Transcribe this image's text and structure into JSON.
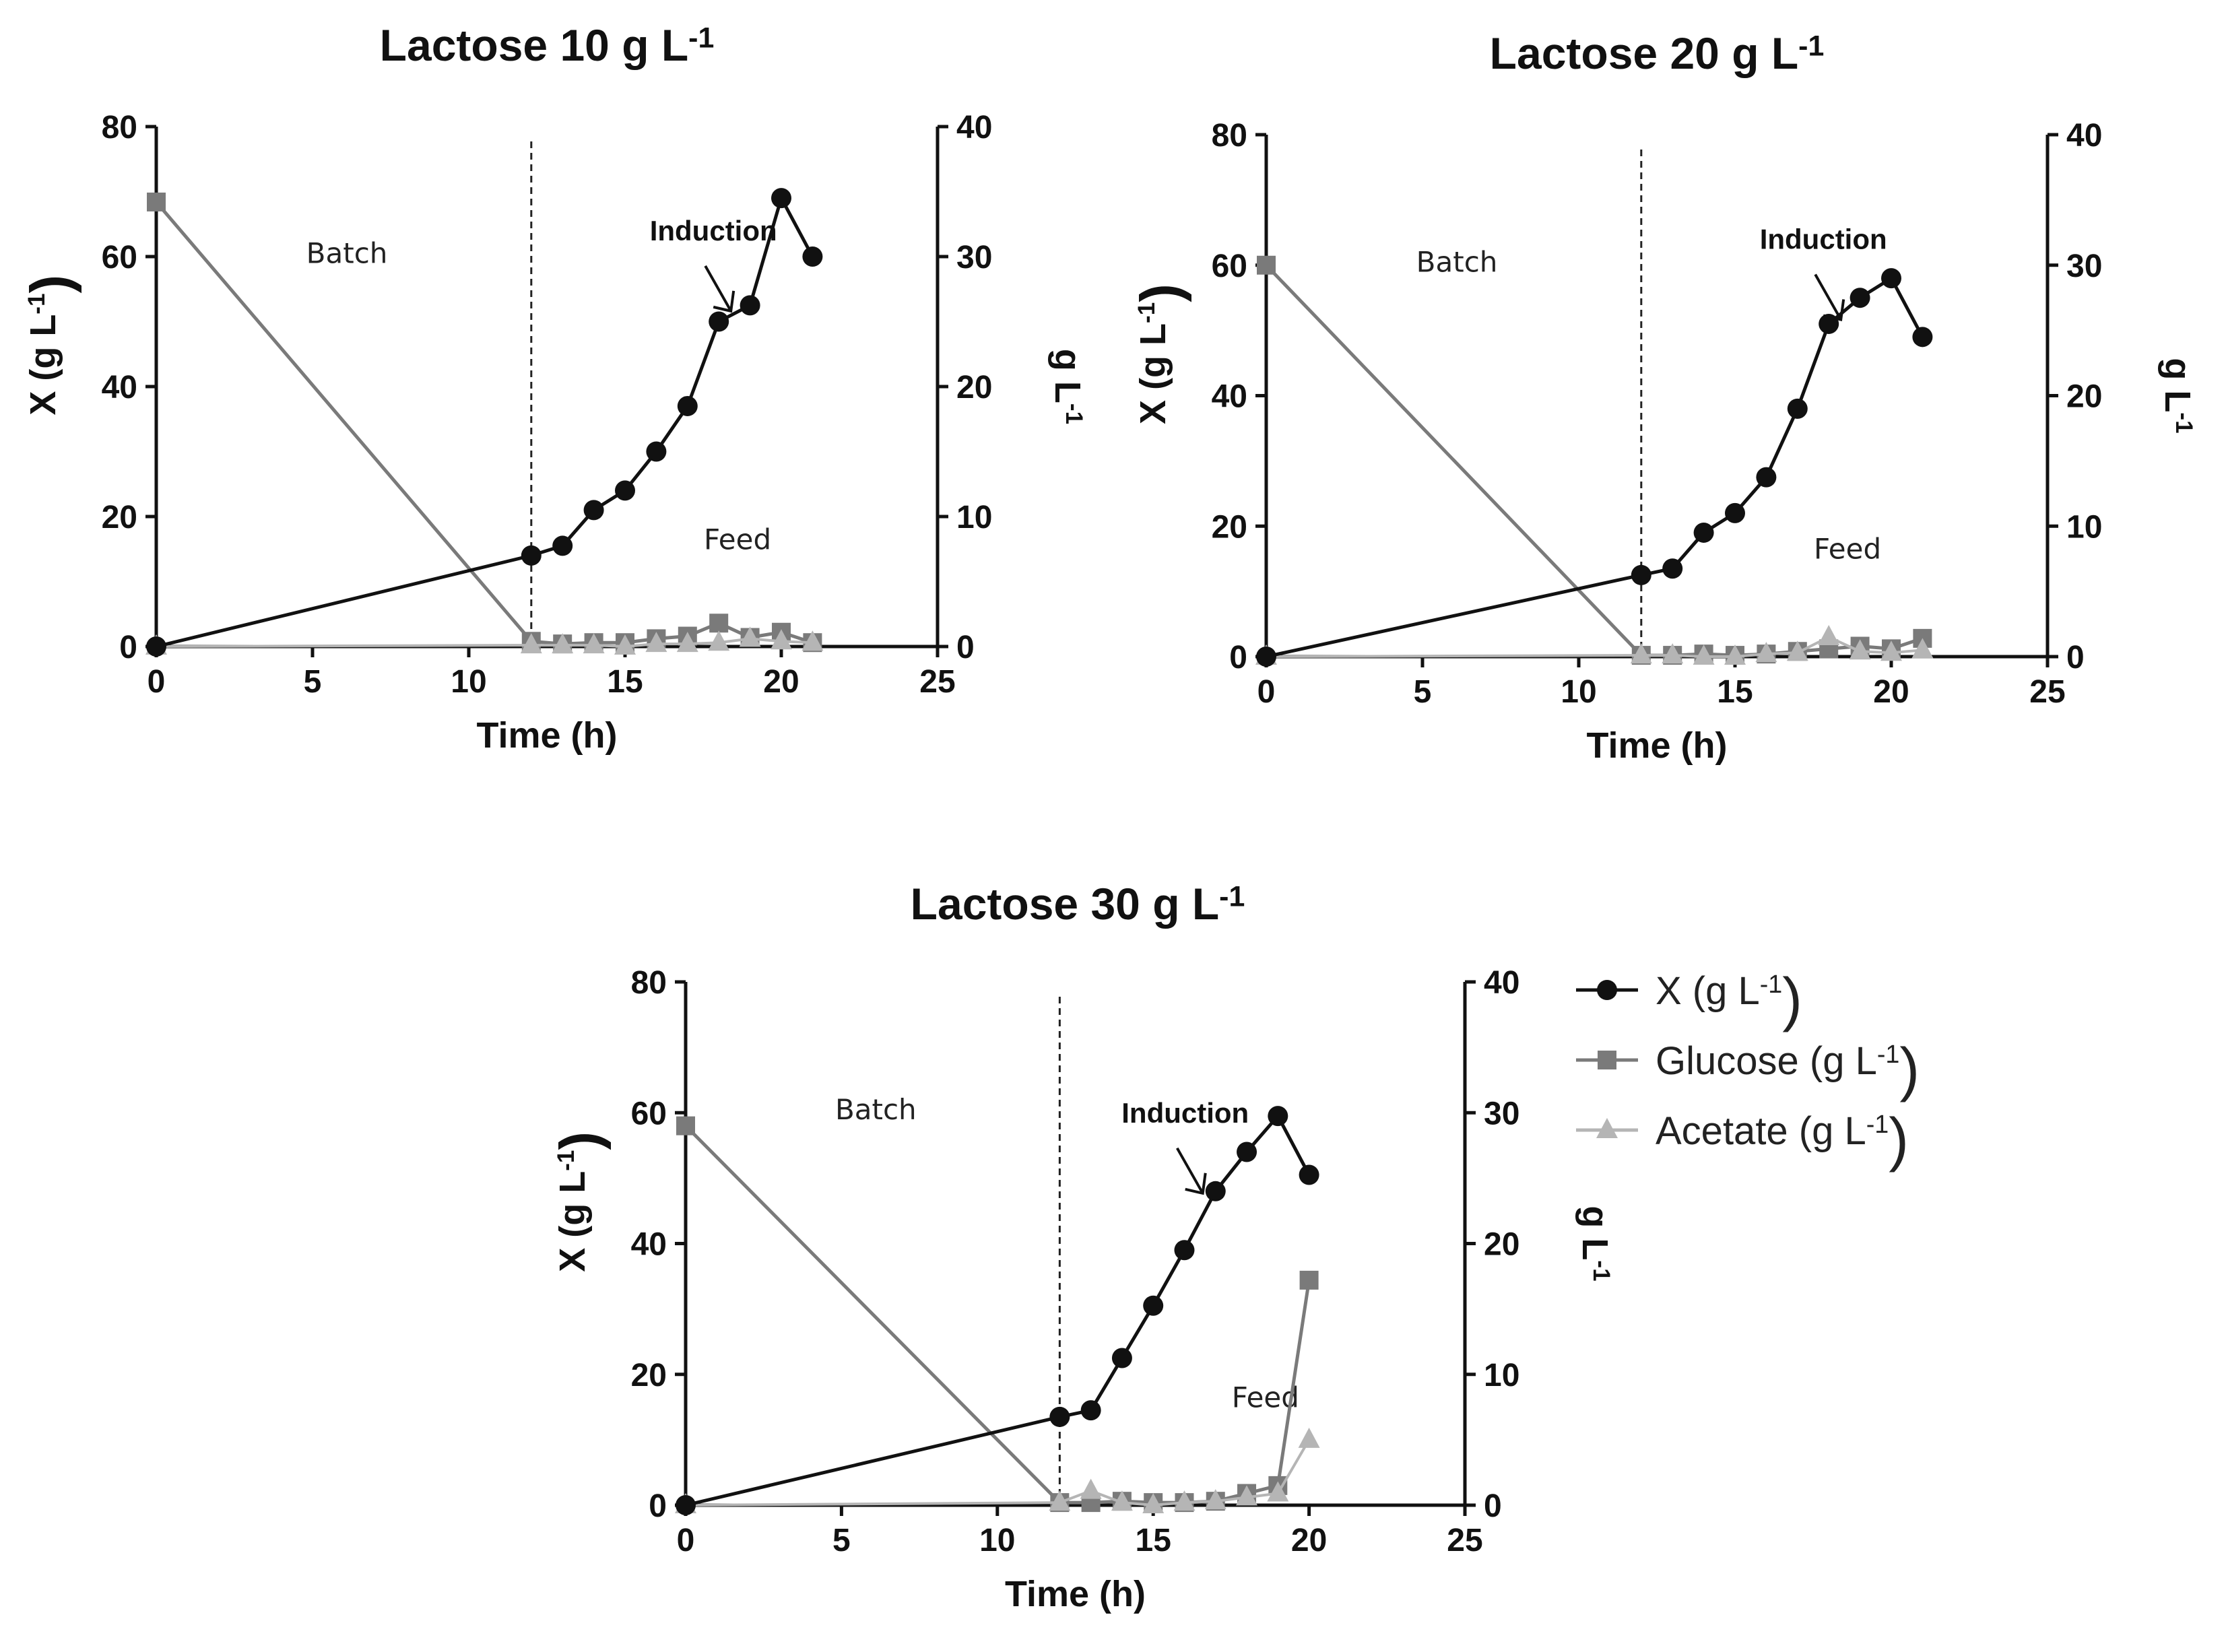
{
  "colors": {
    "biomass": "#111111",
    "glucose": "#7a7a7a",
    "acetate": "#b5b5b5",
    "axis": "#111111"
  },
  "legend": {
    "items": [
      {
        "label": "X (g L",
        "sup": "-1",
        "tail": ")",
        "series": "biomass",
        "marker": "circle"
      },
      {
        "label": "Glucose (g L",
        "sup": "-1",
        "tail": ")",
        "series": "glucose",
        "marker": "square"
      },
      {
        "label": "Acetate (g L",
        "sup": "-1",
        "tail": ")",
        "series": "acetate",
        "marker": "triangle"
      }
    ]
  },
  "chart_data": [
    {
      "type": "line",
      "title": "Lactose 10 g L",
      "title_sup": "-1",
      "xlabel": "Time (h)",
      "ylabel": "X (g L",
      "ylabel_sup": "-1",
      "ylabel_tail": ")",
      "y2label": "g L",
      "y2label_sup": "-1",
      "xlim": [
        0,
        25
      ],
      "ylim": [
        0,
        80
      ],
      "y2lim": [
        0,
        40
      ],
      "xticks": [
        "0",
        "5",
        "10",
        "15",
        "20",
        "25"
      ],
      "yticks": [
        "0",
        "20",
        "40",
        "60",
        "80"
      ],
      "y2ticks": [
        "0",
        "10",
        "20",
        "30",
        "40"
      ],
      "feed_start": 12,
      "annotations": {
        "batch": "Batch",
        "feed": "Feed",
        "induction": "Induction",
        "induction_x": 18
      },
      "series": [
        {
          "name": "X (g L-1)",
          "axis": "left",
          "x": [
            0,
            12,
            13,
            14,
            15,
            16,
            17,
            18,
            19,
            20,
            21
          ],
          "values": [
            0,
            14,
            15.5,
            21,
            24,
            30,
            37,
            50,
            52.5,
            69,
            60
          ]
        },
        {
          "name": "Glucose (g L-1)",
          "axis": "right",
          "x": [
            0,
            12,
            13,
            14,
            15,
            16,
            17,
            18,
            19,
            20,
            21
          ],
          "values": [
            34.2,
            0.4,
            0.2,
            0.3,
            0.3,
            0.6,
            0.8,
            1.8,
            0.7,
            1.1,
            0.3
          ]
        },
        {
          "name": "Acetate (g L-1)",
          "axis": "right",
          "x": [
            0,
            12,
            13,
            14,
            15,
            16,
            17,
            18,
            19,
            20,
            21
          ],
          "values": [
            0,
            0.1,
            0.1,
            0.1,
            0.0,
            0.2,
            0.2,
            0.3,
            0.6,
            0.4,
            0.3
          ]
        }
      ]
    },
    {
      "type": "line",
      "title": "Lactose 20 g L",
      "title_sup": "-1",
      "xlabel": "Time (h)",
      "ylabel": "X (g L",
      "ylabel_sup": "-1",
      "ylabel_tail": ")",
      "y2label": "g L",
      "y2label_sup": "-1",
      "xlim": [
        0,
        25
      ],
      "ylim": [
        0,
        80
      ],
      "y2lim": [
        0,
        40
      ],
      "xticks": [
        "0",
        "5",
        "10",
        "15",
        "20",
        "25"
      ],
      "yticks": [
        "0",
        "20",
        "40",
        "60",
        "80"
      ],
      "y2ticks": [
        "0",
        "10",
        "20",
        "30",
        "40"
      ],
      "feed_start": 12,
      "annotations": {
        "batch": "Batch",
        "feed": "Feed",
        "induction": "Induction",
        "induction_x": 18
      },
      "series": [
        {
          "name": "X (g L-1)",
          "axis": "left",
          "x": [
            0,
            12,
            13,
            14,
            15,
            16,
            17,
            18,
            19,
            20,
            21
          ],
          "values": [
            0,
            12.5,
            13.5,
            19,
            22,
            27.5,
            38,
            51,
            55,
            58,
            49
          ]
        },
        {
          "name": "Glucose (g L-1)",
          "axis": "right",
          "x": [
            0,
            12,
            13,
            14,
            15,
            16,
            17,
            18,
            19,
            20,
            21
          ],
          "values": [
            30,
            0.1,
            0.1,
            0.2,
            0.1,
            0.2,
            0.4,
            0.6,
            0.8,
            0.6,
            1.4
          ]
        },
        {
          "name": "Acetate (g L-1)",
          "axis": "right",
          "x": [
            0,
            12,
            13,
            14,
            15,
            16,
            17,
            18,
            19,
            20,
            21
          ],
          "values": [
            0,
            0.1,
            0.1,
            0.0,
            0.0,
            0.2,
            0.3,
            1.5,
            0.4,
            0.3,
            0.5
          ]
        }
      ]
    },
    {
      "type": "line",
      "title": "Lactose 30 g L",
      "title_sup": "-1",
      "xlabel": "Time (h)",
      "ylabel": "X (g L",
      "ylabel_sup": "-1",
      "ylabel_tail": ")",
      "y2label": "g L",
      "y2label_sup": "-1",
      "xlim": [
        0,
        25
      ],
      "ylim": [
        0,
        80
      ],
      "y2lim": [
        0,
        40
      ],
      "xticks": [
        "0",
        "5",
        "10",
        "15",
        "20",
        "25"
      ],
      "yticks": [
        "0",
        "20",
        "40",
        "60",
        "80"
      ],
      "y2ticks": [
        "0",
        "10",
        "20",
        "30",
        "40"
      ],
      "feed_start": 12,
      "annotations": {
        "batch": "Batch",
        "feed": "Feed",
        "induction": "Induction",
        "induction_x": 16.2
      },
      "series": [
        {
          "name": "X (g L-1)",
          "axis": "left",
          "x": [
            0,
            12,
            13,
            14,
            15,
            16,
            17,
            18,
            19,
            20
          ],
          "values": [
            0,
            13.5,
            14.5,
            22.5,
            30.5,
            39,
            48,
            54,
            59.5,
            50.5
          ]
        },
        {
          "name": "Glucose (g L-1)",
          "axis": "right",
          "x": [
            0,
            12,
            13,
            14,
            15,
            16,
            17,
            18,
            19,
            20
          ],
          "values": [
            29,
            0.2,
            0.2,
            0.3,
            0.2,
            0.2,
            0.3,
            0.9,
            1.5,
            17.2
          ]
        },
        {
          "name": "Acetate (g L-1)",
          "axis": "right",
          "x": [
            0,
            12,
            13,
            14,
            15,
            16,
            17,
            18,
            19,
            20
          ],
          "values": [
            0,
            0.2,
            1.1,
            0.2,
            0.0,
            0.2,
            0.3,
            0.6,
            0.9,
            5.0
          ]
        }
      ]
    }
  ]
}
